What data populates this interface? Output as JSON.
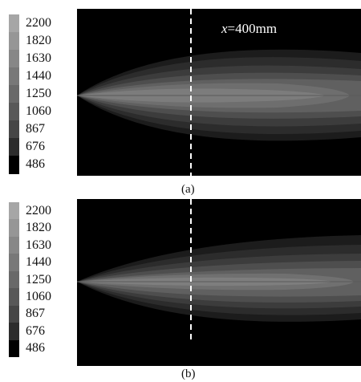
{
  "panels": [
    {
      "id": "a",
      "caption": "(a)",
      "annotation_var": "x",
      "annotation_rest": "=400mm",
      "colorbar_ticks": [
        "2200",
        "1820",
        "1630",
        "1440",
        "1250",
        "1060",
        "867",
        "676",
        "486"
      ],
      "colorbar_colors": [
        "#a6a6a6",
        "#969696",
        "#878787",
        "#787878",
        "#696969",
        "#585858",
        "#464646",
        "#2c2c2c",
        "#000000"
      ]
    },
    {
      "id": "b",
      "caption": "(b)",
      "colorbar_ticks": [
        "2200",
        "1820",
        "1630",
        "1440",
        "1250",
        "1060",
        "867",
        "676",
        "486"
      ],
      "colorbar_colors": [
        "#a6a6a6",
        "#969696",
        "#878787",
        "#787878",
        "#696969",
        "#585858",
        "#464646",
        "#2c2c2c",
        "#000000"
      ]
    }
  ]
}
